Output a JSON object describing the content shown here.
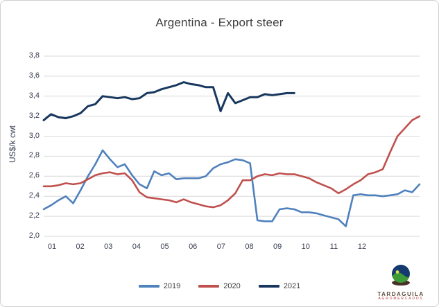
{
  "chart": {
    "title": "Argentina - Export steer",
    "y_axis": {
      "label": "US$/k cwt",
      "ticks": [
        "3,8",
        "3,6",
        "3,4",
        "3,2",
        "3,0",
        "2,8",
        "2,6",
        "2,4",
        "2,2",
        "2,0"
      ]
    },
    "x_axis": {
      "ticks": [
        "01",
        "02",
        "03",
        "04",
        "05",
        "06",
        "07",
        "08",
        "09",
        "10",
        "11",
        "12"
      ]
    },
    "legend": [
      {
        "label": "2019",
        "color": "#4f81bd"
      },
      {
        "label": "2020",
        "color": "#c0504d"
      },
      {
        "label": "2021",
        "color": "#17375e"
      }
    ]
  },
  "chart_data": {
    "type": "line",
    "title": "Argentina - Export steer",
    "ylabel": "US$/k cwt",
    "ylim": [
      2.0,
      3.8
    ],
    "y_tick_step": 0.2,
    "grid": "horizontal",
    "legend_position": "bottom",
    "x_unit": "week of year (weekly prices; month labels 01-12 placed every 4 weeks)",
    "series": [
      {
        "name": "2019",
        "color": "#4f81bd",
        "values": [
          2.27,
          2.31,
          2.36,
          2.4,
          2.33,
          2.46,
          2.6,
          2.72,
          2.86,
          2.77,
          2.69,
          2.72,
          2.61,
          2.52,
          2.48,
          2.65,
          2.61,
          2.63,
          2.57,
          2.58,
          2.58,
          2.58,
          2.6,
          2.68,
          2.72,
          2.74,
          2.77,
          2.76,
          2.73,
          2.16,
          2.15,
          2.15,
          2.27,
          2.28,
          2.27,
          2.24,
          2.24,
          2.23,
          2.21,
          2.19,
          2.17,
          2.1,
          2.41,
          2.42,
          2.41,
          2.41,
          2.4,
          2.41,
          2.42,
          2.46,
          2.44,
          2.52
        ]
      },
      {
        "name": "2020",
        "color": "#c0504d",
        "values": [
          2.5,
          2.5,
          2.51,
          2.53,
          2.52,
          2.53,
          2.57,
          2.61,
          2.63,
          2.64,
          2.62,
          2.63,
          2.56,
          2.44,
          2.39,
          2.38,
          2.37,
          2.36,
          2.34,
          2.37,
          2.34,
          2.32,
          2.3,
          2.29,
          2.31,
          2.36,
          2.43,
          2.56,
          2.56,
          2.6,
          2.62,
          2.61,
          2.63,
          2.62,
          2.62,
          2.6,
          2.58,
          2.54,
          2.51,
          2.48,
          2.43,
          2.47,
          2.52,
          2.56,
          2.62,
          2.64,
          2.67,
          2.84,
          3.0,
          3.08,
          3.16,
          3.2
        ]
      },
      {
        "name": "2021",
        "color": "#17375e",
        "values": [
          3.16,
          3.22,
          3.19,
          3.18,
          3.2,
          3.23,
          3.3,
          3.32,
          3.4,
          3.39,
          3.38,
          3.39,
          3.37,
          3.38,
          3.43,
          3.44,
          3.47,
          3.49,
          3.51,
          3.54,
          3.52,
          3.51,
          3.49,
          3.49,
          3.25,
          3.43,
          3.33,
          3.36,
          3.39,
          3.39,
          3.42,
          3.41,
          3.42,
          3.43,
          3.43
        ]
      }
    ]
  },
  "branding": {
    "name": "TARDAGUILA",
    "subtext": "AGROMERCADOS"
  }
}
